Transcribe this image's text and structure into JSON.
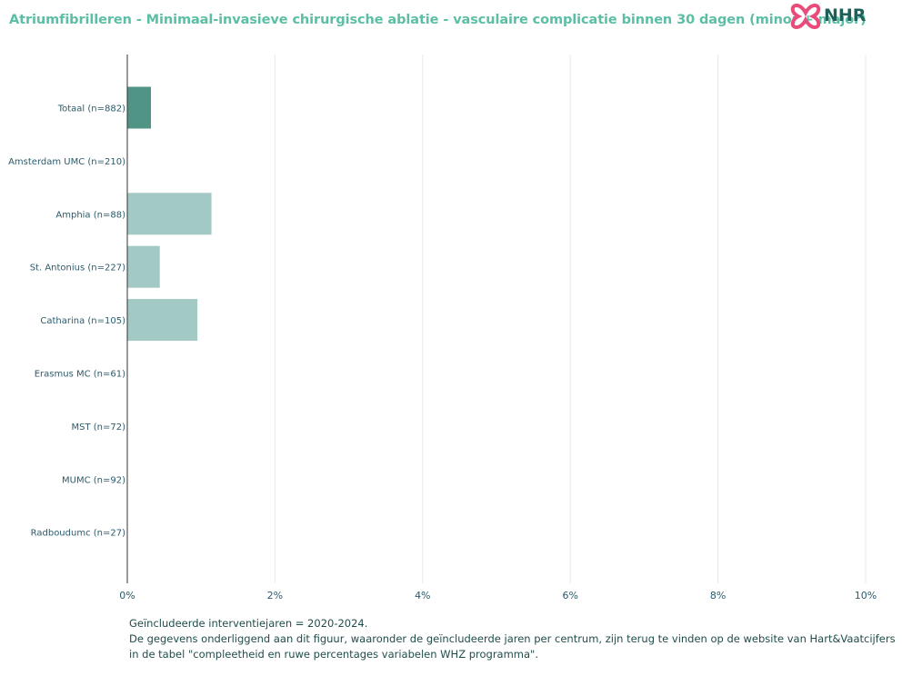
{
  "header": {
    "title": "Atriumfibrilleren - Minimaal-invasieve chirurgische ablatie - vasculaire complicatie binnen 30 dagen (minor + major)",
    "logo_text": "NHR"
  },
  "chart_data": {
    "type": "bar",
    "orientation": "horizontal",
    "title": "Atriumfibrilleren - Minimaal-invasieve chirurgische ablatie - vasculaire complicatie binnen 30 dagen (minor + major)",
    "categories": [
      "Totaal (n=882)",
      "Amsterdam UMC (n=210)",
      "Amphia (n=88)",
      "St. Antonius (n=227)",
      "Catharina (n=105)",
      "Erasmus MC (n=61)",
      "MST (n=72)",
      "MUMC (n=92)",
      "Radboudumc (n=27)"
    ],
    "values": [
      0.32,
      0.0,
      1.14,
      0.44,
      0.95,
      0.0,
      0.0,
      0.0,
      0.0
    ],
    "xlim": [
      0,
      10
    ],
    "x_ticks": [
      "0%",
      "2%",
      "4%",
      "6%",
      "8%",
      "10%"
    ],
    "grid": true,
    "colors": {
      "total": "#4f9484",
      "center": "#a2c9c3",
      "grid": "#e9e9e9",
      "axis": "#333333",
      "label": "#2d5a6b"
    }
  },
  "footer": {
    "line1": "Geïncludeerde interventiejaren = 2020-2024.",
    "line2": "De gegevens onderliggend aan dit figuur, waaronder de geïncludeerde jaren per centrum, zijn terug te vinden op de website van Hart&Vaatcijfers",
    "line3": "in de tabel \"compleetheid en ruwe percentages variabelen WHZ programma\"."
  }
}
